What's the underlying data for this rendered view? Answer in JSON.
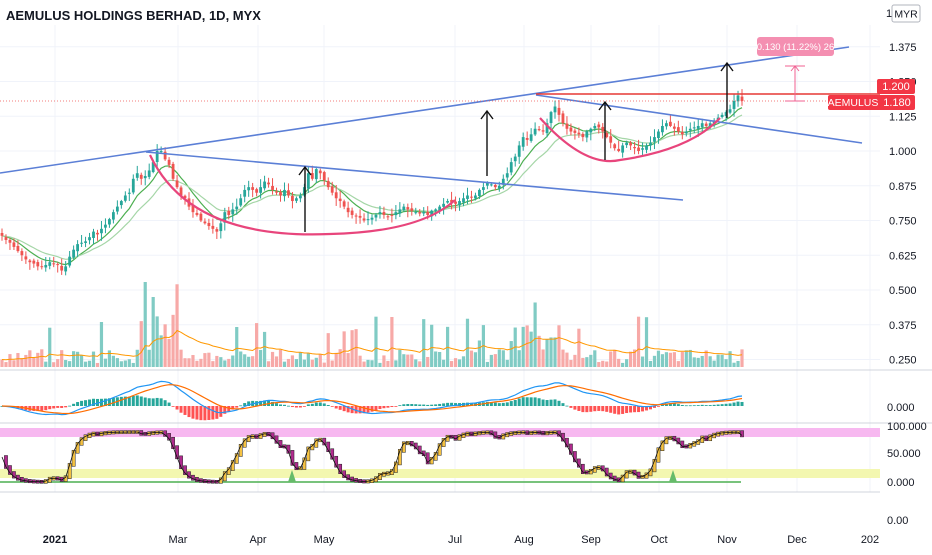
{
  "header": {
    "title": "AEMULUS HOLDINGS BERHAD, 1D, MYX",
    "currency_badge": "MYR"
  },
  "price_axis": {
    "ticks": [
      "1.375",
      "1.250",
      "1.125",
      "1.000",
      "0.875",
      "0.750",
      "0.625",
      "0.500",
      "0.375",
      "0.250"
    ],
    "truncated_top_label": "1",
    "current_price_label": "1.200",
    "symbol_label": "AEMULUS",
    "last_close_label": "1.180"
  },
  "measure_badge": "0.130 (11.22%) 26",
  "macd": {
    "zero_label": "0.000"
  },
  "rsi": {
    "labels": [
      "100.000",
      "50.000",
      "0.000",
      "0.00"
    ]
  },
  "time_axis": {
    "labels": [
      "2021",
      "Mar",
      "Apr",
      "May",
      "Jul",
      "Aug",
      "Sep",
      "Oct",
      "Nov",
      "Dec",
      "202"
    ]
  },
  "colors": {
    "up": "#26a69a",
    "down": "#ef5350",
    "trendline": "#5b7fd6",
    "cup": "#e8457c",
    "ema_fast": "#4caf50",
    "ema_slow": "#a5d6a7",
    "resistance": "#e53935",
    "macd_line": "#2196f3",
    "signal_line": "#ff6d00",
    "rsi_line": "#111111",
    "rsi_up_bar": "#f5c242",
    "rsi_down_bar": "#b02a8e",
    "rsi_top_band": "#f7b8f0",
    "rsi_bottom_band": "#f3f7b0",
    "badge_pink": "#f48fb1",
    "label_red": "#f23645"
  },
  "chart_data": {
    "type": "candlestick",
    "title": "AEMULUS HOLDINGS BERHAD, 1D, MYX",
    "x_labels": [
      "2021",
      "Mar",
      "Apr",
      "May",
      "Jul",
      "Aug",
      "Sep",
      "Oct",
      "Nov",
      "Dec"
    ],
    "ylim": [
      0.22,
      1.45
    ],
    "y_ticks": [
      0.25,
      0.375,
      0.5,
      0.625,
      0.75,
      0.875,
      1.0,
      1.125,
      1.25,
      1.375
    ],
    "current_price": 1.2,
    "last_close": 1.18,
    "close_series": [
      0.695,
      0.68,
      0.67,
      0.655,
      0.64,
      0.625,
      0.61,
      0.6,
      0.595,
      0.585,
      0.585,
      0.59,
      0.6,
      0.595,
      0.59,
      0.57,
      0.585,
      0.62,
      0.645,
      0.665,
      0.67,
      0.675,
      0.69,
      0.71,
      0.7,
      0.72,
      0.735,
      0.755,
      0.78,
      0.8,
      0.82,
      0.84,
      0.85,
      0.9,
      0.92,
      0.9,
      0.91,
      0.93,
      0.96,
      1.0,
      1.0,
      0.97,
      0.95,
      0.9,
      0.87,
      0.84,
      0.83,
      0.8,
      0.78,
      0.77,
      0.75,
      0.74,
      0.73,
      0.72,
      0.71,
      0.74,
      0.78,
      0.77,
      0.79,
      0.8,
      0.83,
      0.86,
      0.87,
      0.86,
      0.85,
      0.87,
      0.89,
      0.88,
      0.86,
      0.85,
      0.84,
      0.86,
      0.84,
      0.82,
      0.83,
      0.84,
      0.87,
      0.92,
      0.9,
      0.935,
      0.92,
      0.895,
      0.87,
      0.85,
      0.83,
      0.82,
      0.8,
      0.78,
      0.77,
      0.765,
      0.76,
      0.75,
      0.755,
      0.76,
      0.77,
      0.78,
      0.77,
      0.765,
      0.77,
      0.78,
      0.79,
      0.8,
      0.79,
      0.785,
      0.78,
      0.775,
      0.78,
      0.77,
      0.785,
      0.79,
      0.8,
      0.81,
      0.82,
      0.815,
      0.81,
      0.82,
      0.83,
      0.84,
      0.835,
      0.84,
      0.86,
      0.87,
      0.885,
      0.88,
      0.87,
      0.875,
      0.9,
      0.92,
      0.96,
      0.98,
      1.02,
      1.05,
      1.04,
      1.06,
      1.08,
      1.075,
      1.07,
      1.1,
      1.14,
      1.16,
      1.13,
      1.1,
      1.08,
      1.07,
      1.065,
      1.06,
      1.05,
      1.07,
      1.08,
      1.09,
      1.085,
      1.07,
      1.05,
      1.03,
      1.01,
      1.0,
      1.02,
      1.03,
      1.02,
      1.01,
      1.0,
      1.01,
      1.02,
      1.03,
      1.05,
      1.07,
      1.09,
      1.1,
      1.09,
      1.08,
      1.07,
      1.06,
      1.07,
      1.08,
      1.085,
      1.09,
      1.1,
      1.09,
      1.1,
      1.11,
      1.12,
      1.13,
      1.14,
      1.15,
      1.18,
      1.2,
      1.18
    ],
    "overlays": {
      "upper_trendline": "rising resistance line",
      "lower_trendline": "falling trendline",
      "horizontal_resistance": 1.18,
      "cup_patterns": 2
    },
    "macd_zero": 0.0,
    "rsi_range": [
      0,
      100
    ],
    "rsi_levels": [
      100,
      50,
      0
    ]
  }
}
